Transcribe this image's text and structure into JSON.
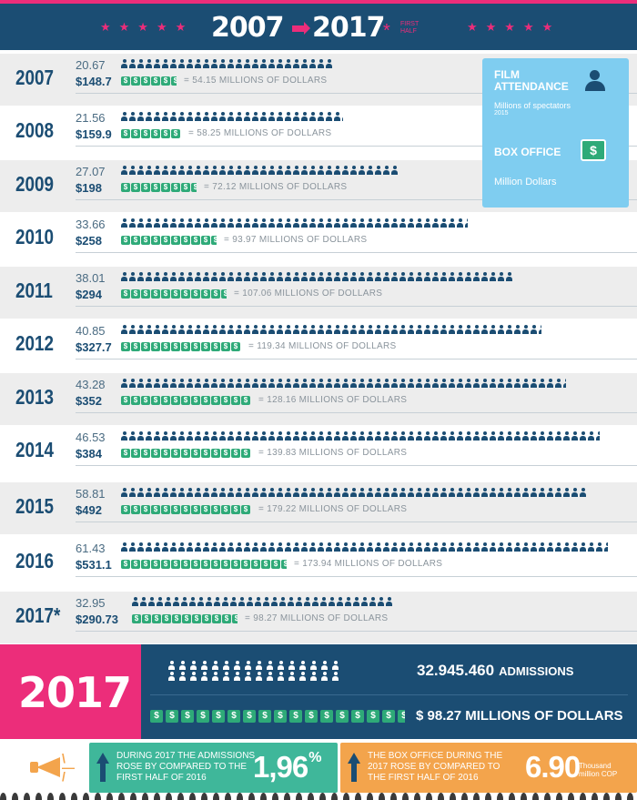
{
  "header": {
    "year_start": "2007",
    "year_end": "2017",
    "note": "First half"
  },
  "legend": {
    "film_attendance": "FILM ATTENDANCE",
    "millions_spectators": "Millions of spectators",
    "year_2015": "2015",
    "box_office": "BOX OFFICE",
    "million_dollars": "Million Dollars",
    "dollar_icon": "$"
  },
  "colors": {
    "navy": "#1b4d73",
    "pink": "#ec2d7a",
    "green": "#2eaa78",
    "light_blue": "#7fcdf0",
    "orange": "#f3a44c",
    "teal": "#3fb79a"
  },
  "rows": [
    {
      "year": "2007",
      "attendance": "20.67",
      "box": "$148.7",
      "millions": "= 54.15 MILLIONS OF DOLLARS",
      "people": 20.67,
      "money": 5.5
    },
    {
      "year": "2008",
      "attendance": "21.56",
      "box": "$159.9",
      "millions": "= 58.25 MILLIONS OF DOLLARS",
      "people": 21.56,
      "money": 6
    },
    {
      "year": "2009",
      "attendance": "27.07",
      "box": "$198",
      "millions": "= 72.12 MILLIONS OF DOLLARS",
      "people": 27.07,
      "money": 7.5
    },
    {
      "year": "2010",
      "attendance": "33.66",
      "box": "$258",
      "millions": "= 93.97 MILLIONS OF DOLLARS",
      "people": 33.66,
      "money": 9.5
    },
    {
      "year": "2011",
      "attendance": "38.01",
      "box": "$294",
      "millions": "= 107.06 MILLIONS OF DOLLARS",
      "people": 38.01,
      "money": 10.5
    },
    {
      "year": "2012",
      "attendance": "40.85",
      "box": "$327.7",
      "millions": "= 119.34 MILLIONS OF DOLLARS",
      "people": 40.85,
      "money": 12
    },
    {
      "year": "2013",
      "attendance": "43.28",
      "box": "$352",
      "millions": "= 128.16 MILLIONS OF DOLLARS",
      "people": 43.28,
      "money": 13
    },
    {
      "year": "2014",
      "attendance": "46.53",
      "box": "$384",
      "millions": "= 139.83 MILLIONS OF DOLLARS",
      "people": 46.53,
      "money": 13
    },
    {
      "year": "2015",
      "attendance": "58.81",
      "box": "$492",
      "millions": "= 179.22 MILLIONS OF DOLLARS",
      "people": 58.81,
      "money": 13
    },
    {
      "year": "2016",
      "attendance": "61.43",
      "box": "$531.1",
      "millions": "= 173.94 MILLIONS OF DOLLARS",
      "people": 61.43,
      "money": 16.5
    },
    {
      "year": "2017*",
      "attendance": "32.95",
      "box": "$290.73",
      "millions": "= 98.27 MILLIONS OF DOLLARS",
      "people": 32.95,
      "money": 10.5
    }
  ],
  "summary": {
    "year": "2017",
    "admissions_value": "32.945.460",
    "admissions_label": "ADMISSIONS",
    "usd": "$ 98.27 MILLIONS OF DOLLARS"
  },
  "footer": {
    "left_text": "DURING 2017 THE ADMISSIONS ROSE BY COMPARED TO THE FIRST HALF OF 2016",
    "left_value": "1,96",
    "left_suffix": "%",
    "right_text": "THE BOX OFFICE DURING THE 2017 ROSE BY COMPARED TO THE FIRST HALF OF 2016",
    "right_value": "6.90",
    "right_unit": "Thousand million COP"
  }
}
